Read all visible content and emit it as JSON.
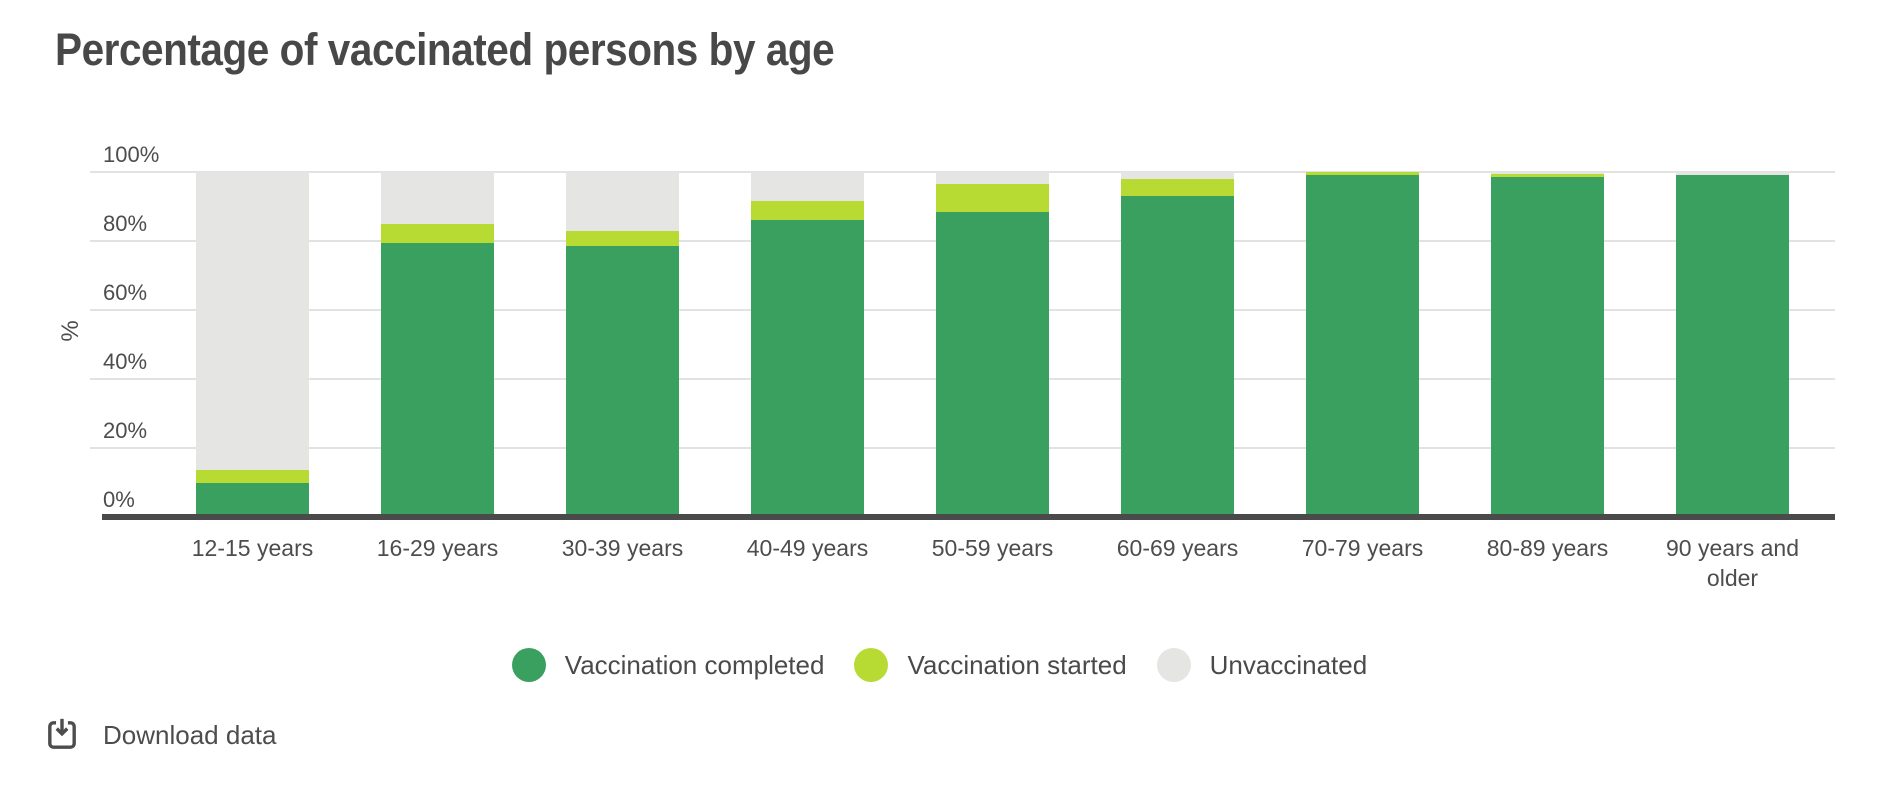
{
  "chart": {
    "title": "Percentage of vaccinated persons by age",
    "y_axis_label": "%",
    "y_ticks": [
      {
        "label": "0%",
        "value": 0
      },
      {
        "label": "20%",
        "value": 20
      },
      {
        "label": "40%",
        "value": 40
      },
      {
        "label": "60%",
        "value": 60
      },
      {
        "label": "80%",
        "value": 80
      },
      {
        "label": "100%",
        "value": 100
      }
    ],
    "colors": {
      "completed": "#3aa05f",
      "started": "#b7db33",
      "unvaccinated": "#e5e5e3",
      "gridline": "#e2e2e2",
      "axis": "#4a4a4a",
      "text": "#4d4d4d"
    }
  },
  "chart_data": {
    "type": "bar",
    "stacked": true,
    "unit": "percent",
    "title": "Percentage of vaccinated persons by age",
    "xlabel": "",
    "ylabel": "%",
    "ylim": [
      0,
      100
    ],
    "grid": true,
    "legend_position": "bottom",
    "categories": [
      "12-15 years",
      "16-29 years",
      "30-39 years",
      "40-49 years",
      "50-59 years",
      "60-69 years",
      "70-79 years",
      "80-89 years",
      "90 years and older"
    ],
    "series": [
      {
        "key": "completed",
        "name": "Vaccination completed",
        "color": "#3aa05f",
        "values": [
          10,
          79.5,
          78.5,
          86,
          88.5,
          93,
          99,
          98.5,
          99
        ]
      },
      {
        "key": "started",
        "name": "Vaccination started",
        "color": "#b7db33",
        "values": [
          3.5,
          5.5,
          4.5,
          5.5,
          8,
          5,
          1,
          1,
          0
        ]
      },
      {
        "key": "unvaccinated",
        "name": "Unvaccinated",
        "color": "#e5e5e3",
        "values": [
          86.5,
          15,
          17,
          8.5,
          3.5,
          2,
          0,
          0.5,
          1
        ]
      }
    ]
  },
  "legend": {
    "items": [
      {
        "key": "completed",
        "label": "Vaccination completed",
        "color": "#3aa05f"
      },
      {
        "key": "started",
        "label": "Vaccination started",
        "color": "#b7db33"
      },
      {
        "key": "unvaccinated",
        "label": "Unvaccinated",
        "color": "#e5e5e3"
      }
    ]
  },
  "download": {
    "label": "Download data"
  }
}
